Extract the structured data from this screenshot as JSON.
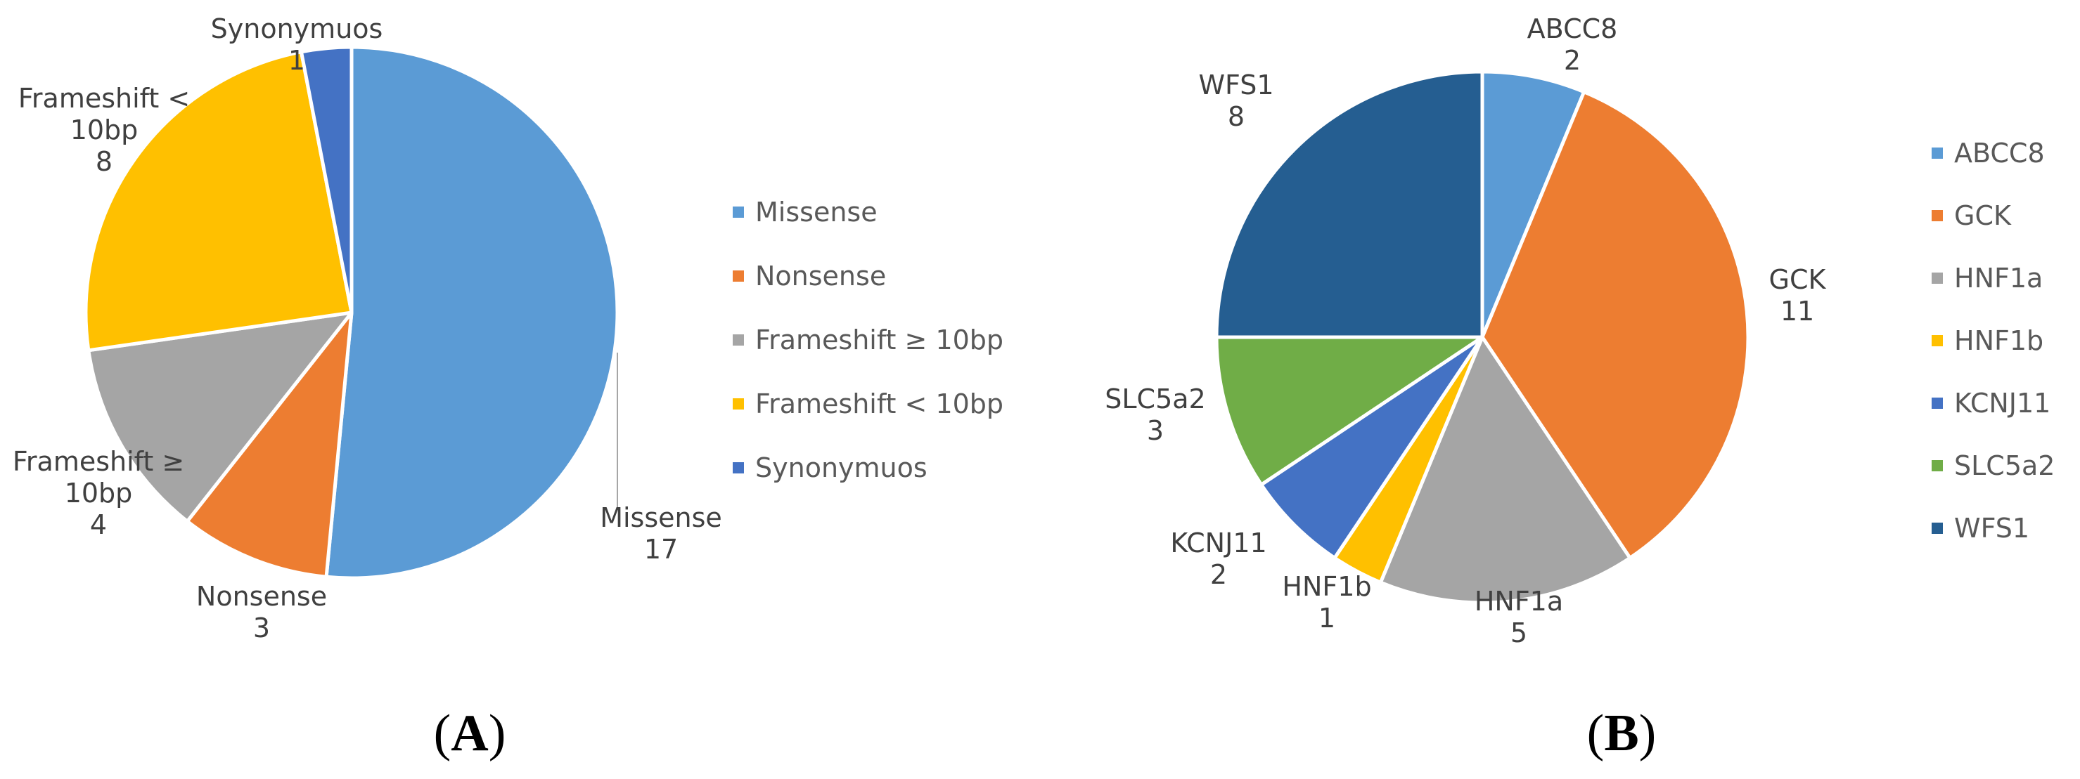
{
  "chart_data": [
    {
      "type": "pie",
      "panel_label": {
        "open": "(",
        "letter": "A",
        "close": ")"
      },
      "slices": [
        {
          "label_lines": [
            "Missense"
          ],
          "value": 17,
          "color": "#5B9BD5"
        },
        {
          "label_lines": [
            "Nonsense"
          ],
          "value": 3,
          "color": "#ED7D31"
        },
        {
          "label_lines": [
            "Frameshift ≥",
            "10bp"
          ],
          "value": 4,
          "color": "#A5A5A5"
        },
        {
          "label_lines": [
            "Frameshift <",
            "10bp"
          ],
          "value": 8,
          "color": "#FFC000"
        },
        {
          "label_lines": [
            "Synonymuos"
          ],
          "value": 1,
          "color": "#4472C4"
        }
      ],
      "legend": [
        {
          "label": "Missense",
          "color": "#5B9BD5"
        },
        {
          "label": " Nonsense",
          "color": "#ED7D31"
        },
        {
          "label": "Frameshift ≥ 10bp",
          "color": "#A5A5A5"
        },
        {
          "label": "Frameshift < 10bp",
          "color": "#FFC000"
        },
        {
          "label": "Synonymuos",
          "color": "#4472C4"
        }
      ],
      "legend_position": "right"
    },
    {
      "type": "pie",
      "panel_label": {
        "open": "(",
        "letter": "B",
        "close": ")"
      },
      "slices": [
        {
          "label_lines": [
            "ABCC8"
          ],
          "value": 2,
          "color": "#5B9BD5"
        },
        {
          "label_lines": [
            "GCK"
          ],
          "value": 11,
          "color": "#ED7D31"
        },
        {
          "label_lines": [
            "HNF1a"
          ],
          "value": 5,
          "color": "#A5A5A5"
        },
        {
          "label_lines": [
            "HNF1b"
          ],
          "value": 1,
          "color": "#FFC000"
        },
        {
          "label_lines": [
            "KCNJ11"
          ],
          "value": 2,
          "color": "#4472C4"
        },
        {
          "label_lines": [
            "SLC5a2"
          ],
          "value": 3,
          "color": "#70AD47"
        },
        {
          "label_lines": [
            "WFS1"
          ],
          "value": 8,
          "color": "#255E91"
        }
      ],
      "legend": [
        {
          "label": "ABCC8",
          "color": "#5B9BD5"
        },
        {
          "label": "GCK",
          "color": "#ED7D31"
        },
        {
          "label": "HNF1a",
          "color": "#A5A5A5"
        },
        {
          "label": "HNF1b",
          "color": "#FFC000"
        },
        {
          "label": "KCNJ11",
          "color": "#4472C4"
        },
        {
          "label": "SLC5a2",
          "color": "#70AD47"
        },
        {
          "label": "WFS1",
          "color": "#255E91"
        }
      ],
      "legend_position": "right"
    }
  ]
}
